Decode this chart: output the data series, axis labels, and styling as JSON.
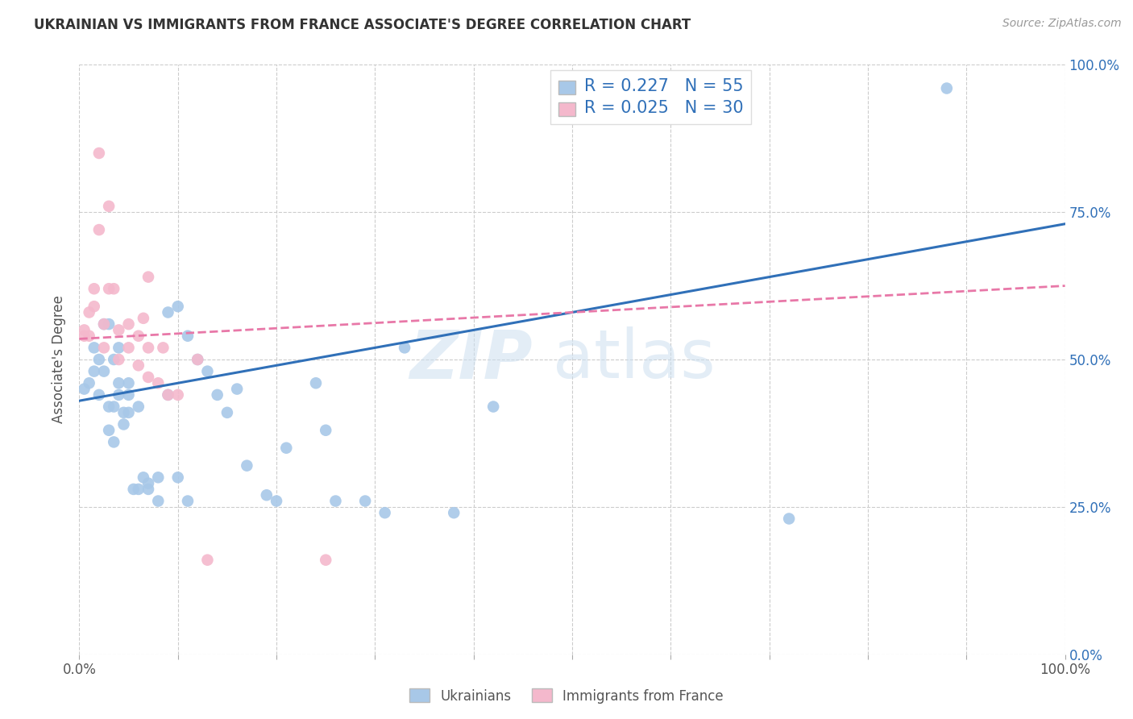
{
  "title": "UKRAINIAN VS IMMIGRANTS FROM FRANCE ASSOCIATE'S DEGREE CORRELATION CHART",
  "source": "Source: ZipAtlas.com",
  "ylabel": "Associate's Degree",
  "xlim": [
    0,
    1
  ],
  "ylim": [
    0,
    1
  ],
  "legend_blue_R": "R = 0.227",
  "legend_blue_N": "N = 55",
  "legend_pink_R": "R = 0.025",
  "legend_pink_N": "N = 30",
  "blue_color": "#a8c8e8",
  "pink_color": "#f4b8cc",
  "blue_line_color": "#3070b8",
  "pink_line_color": "#e878a8",
  "watermark_zip": "ZIP",
  "watermark_atlas": "atlas",
  "blue_scatter_x": [
    0.005,
    0.01,
    0.015,
    0.015,
    0.02,
    0.02,
    0.025,
    0.025,
    0.03,
    0.03,
    0.03,
    0.035,
    0.035,
    0.035,
    0.04,
    0.04,
    0.04,
    0.045,
    0.045,
    0.05,
    0.05,
    0.05,
    0.055,
    0.06,
    0.06,
    0.065,
    0.07,
    0.07,
    0.08,
    0.08,
    0.09,
    0.09,
    0.1,
    0.1,
    0.11,
    0.11,
    0.12,
    0.13,
    0.14,
    0.15,
    0.16,
    0.17,
    0.19,
    0.2,
    0.21,
    0.24,
    0.25,
    0.26,
    0.29,
    0.31,
    0.33,
    0.38,
    0.42,
    0.72,
    0.88
  ],
  "blue_scatter_y": [
    0.45,
    0.46,
    0.48,
    0.52,
    0.5,
    0.44,
    0.56,
    0.48,
    0.56,
    0.38,
    0.42,
    0.36,
    0.42,
    0.5,
    0.52,
    0.44,
    0.46,
    0.39,
    0.41,
    0.44,
    0.46,
    0.41,
    0.28,
    0.42,
    0.28,
    0.3,
    0.28,
    0.29,
    0.3,
    0.26,
    0.58,
    0.44,
    0.59,
    0.3,
    0.26,
    0.54,
    0.5,
    0.48,
    0.44,
    0.41,
    0.45,
    0.32,
    0.27,
    0.26,
    0.35,
    0.46,
    0.38,
    0.26,
    0.26,
    0.24,
    0.52,
    0.24,
    0.42,
    0.23,
    0.96
  ],
  "pink_scatter_x": [
    0.005,
    0.005,
    0.01,
    0.01,
    0.015,
    0.015,
    0.02,
    0.02,
    0.025,
    0.025,
    0.03,
    0.03,
    0.035,
    0.04,
    0.04,
    0.05,
    0.05,
    0.06,
    0.06,
    0.065,
    0.07,
    0.07,
    0.07,
    0.08,
    0.085,
    0.09,
    0.1,
    0.12,
    0.13,
    0.25
  ],
  "pink_scatter_y": [
    0.54,
    0.55,
    0.58,
    0.54,
    0.62,
    0.59,
    0.85,
    0.72,
    0.52,
    0.56,
    0.62,
    0.76,
    0.62,
    0.55,
    0.5,
    0.52,
    0.56,
    0.49,
    0.54,
    0.57,
    0.47,
    0.52,
    0.64,
    0.46,
    0.52,
    0.44,
    0.44,
    0.5,
    0.16,
    0.16
  ],
  "blue_line_x0": 0.0,
  "blue_line_x1": 1.0,
  "blue_line_y0": 0.43,
  "blue_line_y1": 0.73,
  "pink_line_x0": 0.0,
  "pink_line_x1": 1.0,
  "pink_line_y0": 0.535,
  "pink_line_y1": 0.625,
  "xtick_positions": [
    0.0,
    0.1,
    0.2,
    0.3,
    0.4,
    0.5,
    0.6,
    0.7,
    0.8,
    0.9,
    1.0
  ],
  "ytick_positions": [
    0.0,
    0.25,
    0.5,
    0.75,
    1.0
  ],
  "ytick_labels_right": [
    "0.0%",
    "25.0%",
    "50.0%",
    "75.0%",
    "100.0%"
  ],
  "background_color": "#ffffff"
}
